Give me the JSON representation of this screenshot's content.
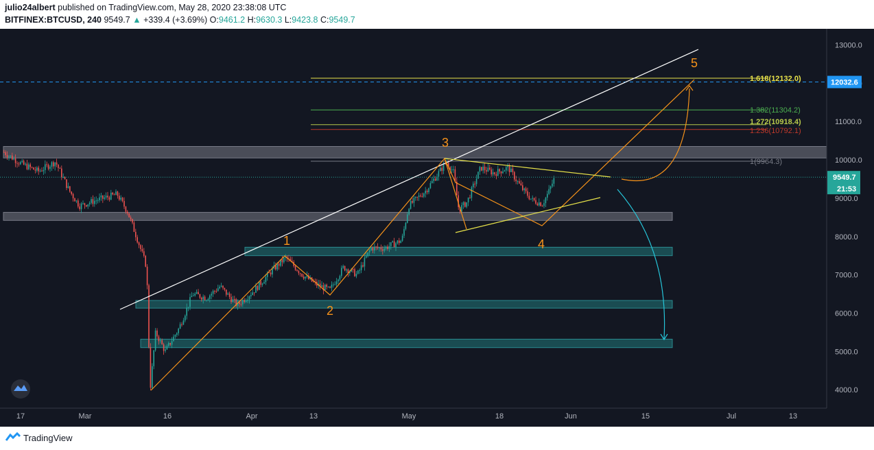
{
  "header": {
    "author": "julio24albert",
    "published": "published on TradingView.com, May 28, 2020 23:38:08 UTC",
    "symbol": "BITFINEX:BTCUSD, 240",
    "last": "9549.7",
    "change": "+339.4 (+3.69%)",
    "o_label": "O:",
    "o_value": "9461.2",
    "h_label": "H:",
    "h_value": "9630.3",
    "l_label": "L:",
    "l_value": "9423.8",
    "c_label": "C:",
    "c_value": "9549.7"
  },
  "footer": {
    "brand": "TradingView"
  },
  "colors": {
    "background": "#131722",
    "axis_bg": "#131722",
    "text": "#b2b5be",
    "up": "#26a69a",
    "down": "#ef5350",
    "wave": "#f7931a",
    "fib_yellow": "#e8e34a",
    "fib_green": "#4caf50",
    "fib_red": "#c0392b",
    "fib_gray": "#787b86",
    "zone_teal": "#1e5f63",
    "zone_gray": "#5d606b",
    "price_tag": "#26a69a",
    "blue_tag": "#2196f3"
  },
  "chart_data": {
    "type": "candlestick",
    "y_ticks": [
      "13000.0",
      "12000.0",
      "11000.0",
      "10000.0",
      "9000.0",
      "8000.0",
      "7000.0",
      "6000.0",
      "5000.0",
      "4000.0"
    ],
    "y_tick_values": [
      13000,
      12000,
      11000,
      10000,
      9000,
      8000,
      7000,
      6000,
      5000,
      4000
    ],
    "x_ticks": [
      "17",
      "Mar",
      "16",
      "Apr",
      "13",
      "May",
      "18",
      "Jun",
      "15",
      "Jul",
      "13"
    ],
    "price_tag": {
      "label": "9549.7",
      "value": 9549.7,
      "countdown": "21:53"
    },
    "target_tag": {
      "label": "12032.6",
      "value": 12032.6
    },
    "fib_levels": [
      {
        "label": "1.618(12132.0)",
        "value": 12132.0,
        "color": "#e8e34a"
      },
      {
        "label": "1.382(11304.2)",
        "value": 11304.2,
        "color": "#4caf50"
      },
      {
        "label": "1.272(10918.4)",
        "value": 10918.4,
        "color": "#b7c94a"
      },
      {
        "label": "1.236(10792.1)",
        "value": 10792.1,
        "color": "#c0392b"
      },
      {
        "label": "1(9964.3)",
        "value": 9964.3,
        "color": "#787b86"
      }
    ],
    "zones": [
      {
        "low": 10050,
        "high": 10350,
        "color": "gray"
      },
      {
        "low": 8420,
        "high": 8630,
        "color": "gray"
      },
      {
        "low": 7500,
        "high": 7720,
        "color": "teal"
      },
      {
        "low": 6130,
        "high": 6330,
        "color": "teal"
      },
      {
        "low": 5100,
        "high": 5320,
        "color": "teal"
      }
    ],
    "wave_labels": [
      "1",
      "2",
      "3",
      "4",
      "5"
    ],
    "wave_prices": [
      7470,
      6470,
      10060,
      8280,
      12060
    ],
    "ohlc": {
      "open": 9461.2,
      "high": 9630.3,
      "low": 9423.8,
      "close": 9549.7
    }
  }
}
